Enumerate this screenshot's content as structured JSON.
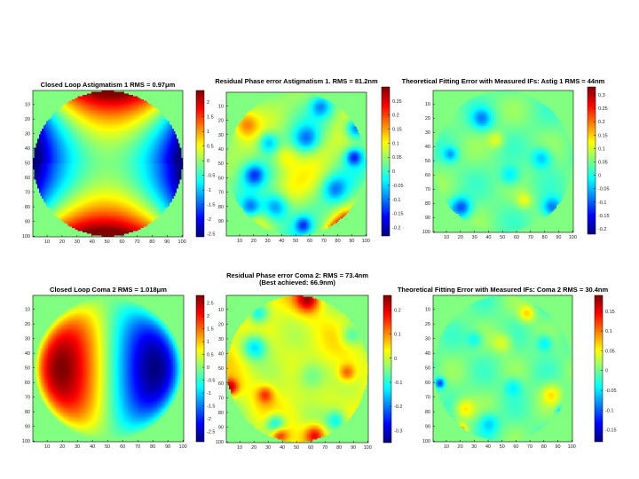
{
  "chart_data": [
    {
      "type": "heatmap",
      "id": "p1",
      "title": [
        "Closed Loop Astigmatism 1 RMS = 0.97μm"
      ],
      "pattern": "astig",
      "xticks": [
        10,
        20,
        30,
        40,
        50,
        60,
        70,
        80,
        90,
        100
      ],
      "yticks": [
        10,
        20,
        30,
        40,
        50,
        60,
        70,
        80,
        90,
        100
      ],
      "colorbar": {
        "ticks": [
          "2",
          "1.5",
          "1",
          "0.5",
          "0",
          "-0.5",
          "-1",
          "-1.5",
          "-2",
          "-2.5"
        ],
        "range": [
          -2.6,
          2.4
        ]
      },
      "rms": "0.97μm"
    },
    {
      "type": "heatmap",
      "id": "p2",
      "title": [
        "Residual Phase error Astigmatism 1. RMS = 81.2nm"
      ],
      "pattern": "residual",
      "xticks": [
        10,
        20,
        30,
        40,
        50,
        60,
        70,
        80,
        90,
        100
      ],
      "yticks": [
        10,
        20,
        30,
        40,
        50,
        60,
        70,
        80,
        90
      ],
      "colorbar": {
        "ticks": [
          "0.25",
          "0.2",
          "0.15",
          "0.1",
          "0.05",
          "0",
          "-0.05",
          "-0.1",
          "-0.15",
          "-0.2"
        ],
        "range": [
          -0.23,
          0.3
        ]
      },
      "rms": "81.2nm"
    },
    {
      "type": "heatmap",
      "id": "p3",
      "title": [
        "Theoretical Fitting Error with Measured IFs: Astig 1 RMS = 44nm"
      ],
      "pattern": "fitting",
      "xticks": [
        10,
        20,
        30,
        40,
        50,
        60,
        70,
        80,
        90,
        100
      ],
      "yticks": [
        10,
        20,
        30,
        40,
        50,
        60,
        70,
        80,
        90,
        100
      ],
      "colorbar": {
        "ticks": [
          "0.3",
          "0.25",
          "0.2",
          "0.15",
          "0.1",
          "0.05",
          "0",
          "-0.05",
          "-0.1",
          "-0.15",
          "-0.2"
        ],
        "range": [
          -0.22,
          0.33
        ]
      },
      "rms": "44nm"
    },
    {
      "type": "heatmap",
      "id": "p4",
      "title": [
        "Closed Loop Coma 2 RMS = 1.018μm"
      ],
      "pattern": "coma",
      "xticks": [
        10,
        20,
        30,
        40,
        50,
        60,
        70,
        80,
        90,
        100
      ],
      "yticks": [
        10,
        20,
        30,
        40,
        50,
        60,
        70,
        80,
        90,
        100
      ],
      "colorbar": {
        "ticks": [
          "2.5",
          "2",
          "1.5",
          "1",
          "0.5",
          "0",
          "-0.5",
          "-1",
          "-1.5",
          "-2",
          "-2.5"
        ],
        "range": [
          -2.9,
          2.8
        ]
      },
      "rms": "1.018μm"
    },
    {
      "type": "heatmap",
      "id": "p5",
      "title": [
        "Residual Phase error Coma 2: RMS = 73.4nm",
        "(Best achieved: 66.9nm)"
      ],
      "pattern": "residual2",
      "xticks": [
        10,
        20,
        30,
        40,
        50,
        60,
        70,
        80,
        90,
        100
      ],
      "yticks": [
        10,
        20,
        30,
        40,
        50,
        60,
        70,
        80,
        90,
        100
      ],
      "colorbar": {
        "ticks": [
          "0.2",
          "0.1",
          "0",
          "-0.1",
          "-0.2",
          "-0.3"
        ],
        "range": [
          -0.35,
          0.26
        ]
      },
      "rms": "73.4nm",
      "best_achieved": "66.9nm"
    },
    {
      "type": "heatmap",
      "id": "p6",
      "title": [
        "Theoretical Fitting Error with Measured IFs: Coma 2 RMS = 30.4nm"
      ],
      "pattern": "fitting2",
      "xticks": [
        10,
        20,
        30,
        40,
        50,
        60,
        70,
        80,
        90,
        100
      ],
      "yticks": [
        10,
        20,
        30,
        40,
        50,
        60,
        70,
        80,
        90,
        100
      ],
      "colorbar": {
        "ticks": [
          "0.15",
          "0.1",
          "0.05",
          "0",
          "-0.05",
          "-0.1",
          "-0.15"
        ],
        "range": [
          -0.18,
          0.19
        ]
      },
      "rms": "30.4nm"
    }
  ]
}
